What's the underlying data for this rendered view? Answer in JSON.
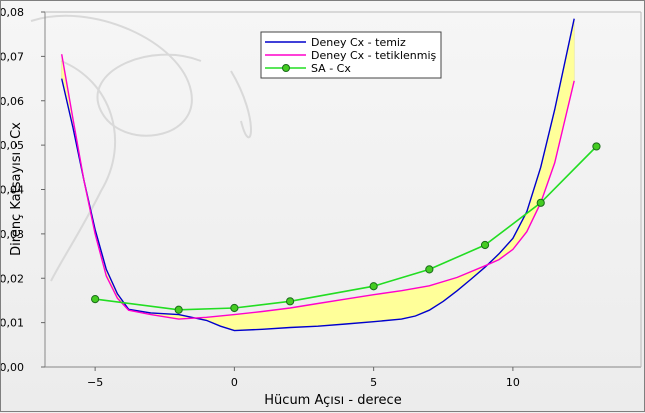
{
  "chart_data": {
    "type": "line",
    "xlabel": "Hücum Açısı - derece",
    "ylabel": "Direnç Katsayısı - Cx",
    "xlim": [
      -6.8,
      14.6
    ],
    "ylim": [
      0,
      0.08
    ],
    "x_ticks": [
      -5,
      0,
      5,
      10
    ],
    "x_tick_labels": [
      "−5",
      "0",
      "5",
      "10"
    ],
    "y_ticks": [
      0,
      0.01,
      0.02,
      0.03,
      0.04,
      0.05,
      0.06,
      0.07,
      0.08
    ],
    "y_tick_labels": [
      "0,00",
      "0,01",
      "0,02",
      "0,03",
      "0,04",
      "0,05",
      "0,06",
      "0,07",
      "0,08"
    ],
    "grid": false,
    "legend_position": "top-center",
    "fill_between": {
      "upper_series": "Deney Cx - tetiklenmiş",
      "lower_series": "Deney Cx - temiz",
      "color": "#ffff99"
    },
    "series": [
      {
        "name": "Deney Cx - temiz",
        "color": "#0000cc",
        "markers": false,
        "x": [
          -6.2,
          -5.8,
          -5.4,
          -5,
          -4.6,
          -4.2,
          -3.8,
          -3,
          -2,
          -1,
          -0.5,
          0,
          1,
          2,
          3,
          4,
          5,
          6,
          6.5,
          7,
          7.5,
          8,
          8.5,
          9,
          9.5,
          10,
          10.5,
          11,
          11.5,
          12.2
        ],
        "y": [
          0.065,
          0.054,
          0.042,
          0.031,
          0.022,
          0.0165,
          0.013,
          0.0122,
          0.0118,
          0.0105,
          0.0092,
          0.0082,
          0.0085,
          0.0089,
          0.0092,
          0.0097,
          0.0102,
          0.0108,
          0.0115,
          0.0128,
          0.0148,
          0.0172,
          0.0198,
          0.0225,
          0.0255,
          0.029,
          0.035,
          0.045,
          0.058,
          0.0785
        ]
      },
      {
        "name": "Deney Cx - tetiklenmiş",
        "color": "#ff00cc",
        "markers": false,
        "x": [
          -6.2,
          -5.8,
          -5.4,
          -5,
          -4.6,
          -4.2,
          -3.8,
          -3,
          -2,
          -1,
          0,
          1,
          2,
          3,
          4,
          5,
          6,
          7,
          8,
          9,
          9.5,
          10,
          10.5,
          11,
          11.5,
          12.2
        ],
        "y": [
          0.0705,
          0.056,
          0.042,
          0.03,
          0.0205,
          0.0155,
          0.0128,
          0.0118,
          0.0108,
          0.0112,
          0.0118,
          0.0125,
          0.0133,
          0.0143,
          0.0153,
          0.0163,
          0.0172,
          0.0183,
          0.0202,
          0.0228,
          0.0242,
          0.0265,
          0.0305,
          0.037,
          0.046,
          0.0645
        ]
      },
      {
        "name": "SA - Cx",
        "color": "#22dd22",
        "markers": true,
        "marker_color": "#44cc22",
        "x": [
          -5,
          -2,
          0,
          2,
          5,
          7,
          9,
          11,
          13
        ],
        "y": [
          0.0153,
          0.0129,
          0.0133,
          0.0148,
          0.0182,
          0.022,
          0.0275,
          0.037,
          0.0497
        ]
      }
    ]
  }
}
